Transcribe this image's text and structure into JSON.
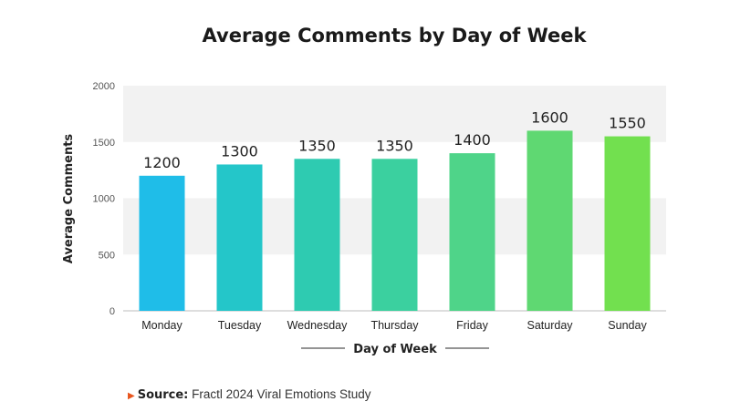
{
  "chart_data": {
    "type": "bar",
    "title": "Average Comments by Day of Week",
    "xlabel": "Day of Week",
    "ylabel": "Average Comments",
    "categories": [
      "Monday",
      "Tuesday",
      "Wednesday",
      "Thursday",
      "Friday",
      "Saturday",
      "Sunday"
    ],
    "values": [
      1200,
      1300,
      1350,
      1350,
      1400,
      1600,
      1550
    ],
    "ylim": [
      0,
      2000
    ],
    "yticks": [
      0,
      500,
      1000,
      1500,
      2000
    ],
    "colors": [
      "#1fbde8",
      "#24c6c9",
      "#2ecbb1",
      "#3bd09f",
      "#4fd489",
      "#5fd872",
      "#72e04f"
    ],
    "band_color": "#f2f2f2",
    "grid": false,
    "legend": "none"
  },
  "source": {
    "label": "Source:",
    "text": "Fractl 2024 Viral Emotions Study",
    "marker_color": "#e8561e"
  }
}
